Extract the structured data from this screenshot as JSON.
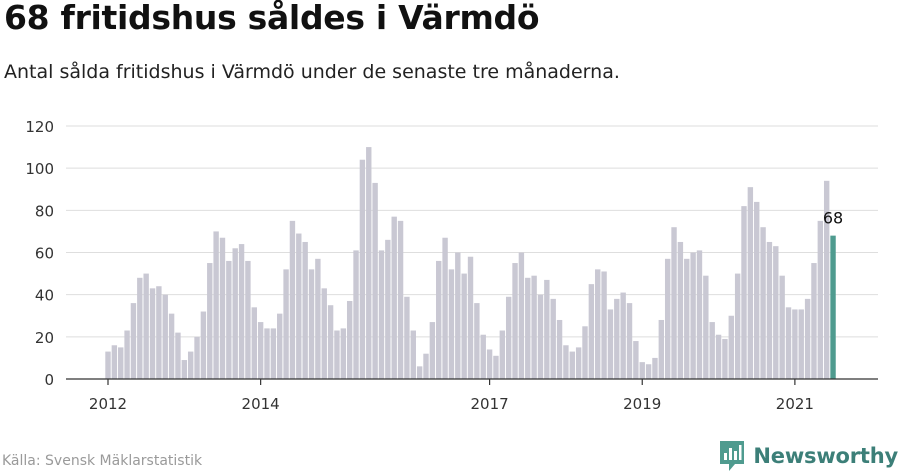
{
  "title": "68 fritidshus såldes i Värmdö",
  "subtitle": "Antal sålda fritidshus i Värmdö under de senaste tre månaderna.",
  "source": "Källa: Svensk Mäklarstatistik",
  "brand": {
    "name": "Newsworthy",
    "logo_icon": "newsworthy-logo-icon",
    "color": "#3c7f78"
  },
  "chart_data": {
    "type": "bar",
    "title": "",
    "xlabel": "",
    "ylabel": "",
    "ylim": [
      0,
      120
    ],
    "yticks": [
      0,
      20,
      40,
      60,
      80,
      100,
      120
    ],
    "x_tick_labels": [
      {
        "label": "2012",
        "index": 0
      },
      {
        "label": "2014",
        "index": 24
      },
      {
        "label": "2017",
        "index": 60
      },
      {
        "label": "2019",
        "index": 84
      },
      {
        "label": "2021",
        "index": 108
      }
    ],
    "grid": true,
    "bar_color": "#c9c8d3",
    "highlight_color": "#4f9b8f",
    "highlight_last": true,
    "last_value_label": "68",
    "values": [
      13,
      16,
      15,
      23,
      36,
      48,
      50,
      43,
      44,
      40,
      31,
      22,
      9,
      13,
      20,
      32,
      55,
      70,
      67,
      56,
      62,
      64,
      56,
      34,
      27,
      24,
      24,
      31,
      52,
      75,
      69,
      65,
      52,
      57,
      43,
      35,
      23,
      24,
      37,
      61,
      104,
      110,
      93,
      61,
      66,
      77,
      75,
      39,
      23,
      6,
      12,
      27,
      56,
      67,
      52,
      60,
      50,
      58,
      36,
      21,
      14,
      11,
      23,
      39,
      55,
      60,
      48,
      49,
      40,
      47,
      38,
      28,
      16,
      13,
      15,
      25,
      45,
      52,
      51,
      33,
      38,
      41,
      36,
      18,
      8,
      7,
      10,
      28,
      57,
      72,
      65,
      57,
      60,
      61,
      49,
      27,
      21,
      19,
      30,
      50,
      82,
      91,
      84,
      72,
      65,
      63,
      49,
      34,
      33,
      33,
      38,
      55,
      75,
      94,
      68
    ]
  }
}
